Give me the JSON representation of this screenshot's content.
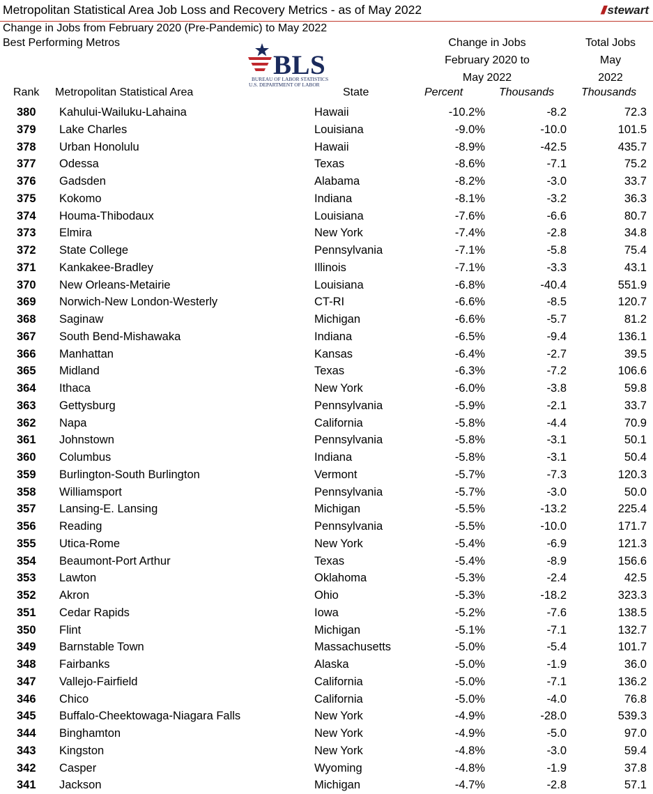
{
  "header": {
    "title": "Metropolitan Statistical Area Job Loss and Recovery Metrics - as of May 2022",
    "brand": "stewart",
    "brand_color": "#b3201f",
    "subtitle1": "Change in Jobs from February 2020 (Pre-Pandemic) to May 2022",
    "subtitle2": "Best Performing Metros"
  },
  "logo": {
    "abbr": "BLS",
    "line1": "BUREAU OF LABOR STATISTICS",
    "line2": "U.S. DEPARTMENT OF LABOR",
    "icon": "bls-star-flag-icon"
  },
  "group_headers": {
    "change_line1": "Change in Jobs",
    "change_line2": "February 2020 to",
    "change_line3": "May 2022",
    "total_line1": "Total Jobs",
    "total_line2": "May",
    "total_line3": "2022"
  },
  "columns": {
    "rank": "Rank",
    "msa": "Metropolitan Statistical Area",
    "state": "State",
    "percent": "Percent",
    "thousands": "Thousands",
    "total_thousands": "Thousands"
  },
  "rows": [
    {
      "rank": "380",
      "msa": "Kahului-Wailuku-Lahaina",
      "state": "Hawaii",
      "pct": "-10.2%",
      "thou": "-8.2",
      "total": "72.3"
    },
    {
      "rank": "379",
      "msa": "Lake Charles",
      "state": "Louisiana",
      "pct": "-9.0%",
      "thou": "-10.0",
      "total": "101.5"
    },
    {
      "rank": "378",
      "msa": "Urban Honolulu",
      "state": "Hawaii",
      "pct": "-8.9%",
      "thou": "-42.5",
      "total": "435.7"
    },
    {
      "rank": "377",
      "msa": "Odessa",
      "state": "Texas",
      "pct": "-8.6%",
      "thou": "-7.1",
      "total": "75.2"
    },
    {
      "rank": "376",
      "msa": "Gadsden",
      "state": "Alabama",
      "pct": "-8.2%",
      "thou": "-3.0",
      "total": "33.7"
    },
    {
      "rank": "375",
      "msa": "Kokomo",
      "state": "Indiana",
      "pct": "-8.1%",
      "thou": "-3.2",
      "total": "36.3"
    },
    {
      "rank": "374",
      "msa": "Houma-Thibodaux",
      "state": "Louisiana",
      "pct": "-7.6%",
      "thou": "-6.6",
      "total": "80.7"
    },
    {
      "rank": "373",
      "msa": "Elmira",
      "state": "New York",
      "pct": "-7.4%",
      "thou": "-2.8",
      "total": "34.8"
    },
    {
      "rank": "372",
      "msa": "State College",
      "state": "Pennsylvania",
      "pct": "-7.1%",
      "thou": "-5.8",
      "total": "75.4"
    },
    {
      "rank": "371",
      "msa": "Kankakee-Bradley",
      "state": "Illinois",
      "pct": "-7.1%",
      "thou": "-3.3",
      "total": "43.1"
    },
    {
      "rank": "370",
      "msa": "New Orleans-Metairie",
      "state": "Louisiana",
      "pct": "-6.8%",
      "thou": "-40.4",
      "total": "551.9"
    },
    {
      "rank": "369",
      "msa": "Norwich-New London-Westerly",
      "state": "CT-RI",
      "pct": "-6.6%",
      "thou": "-8.5",
      "total": "120.7"
    },
    {
      "rank": "368",
      "msa": "Saginaw",
      "state": "Michigan",
      "pct": "-6.6%",
      "thou": "-5.7",
      "total": "81.2"
    },
    {
      "rank": "367",
      "msa": "South Bend-Mishawaka",
      "state": "Indiana",
      "pct": "-6.5%",
      "thou": "-9.4",
      "total": "136.1"
    },
    {
      "rank": "366",
      "msa": "Manhattan",
      "state": "Kansas",
      "pct": "-6.4%",
      "thou": "-2.7",
      "total": "39.5"
    },
    {
      "rank": "365",
      "msa": "Midland",
      "state": "Texas",
      "pct": "-6.3%",
      "thou": "-7.2",
      "total": "106.6"
    },
    {
      "rank": "364",
      "msa": "Ithaca",
      "state": "New York",
      "pct": "-6.0%",
      "thou": "-3.8",
      "total": "59.8"
    },
    {
      "rank": "363",
      "msa": "Gettysburg",
      "state": "Pennsylvania",
      "pct": "-5.9%",
      "thou": "-2.1",
      "total": "33.7"
    },
    {
      "rank": "362",
      "msa": "Napa",
      "state": "California",
      "pct": "-5.8%",
      "thou": "-4.4",
      "total": "70.9"
    },
    {
      "rank": "361",
      "msa": "Johnstown",
      "state": "Pennsylvania",
      "pct": "-5.8%",
      "thou": "-3.1",
      "total": "50.1"
    },
    {
      "rank": "360",
      "msa": "Columbus",
      "state": "Indiana",
      "pct": "-5.8%",
      "thou": "-3.1",
      "total": "50.4"
    },
    {
      "rank": "359",
      "msa": "Burlington-South Burlington",
      "state": "Vermont",
      "pct": "-5.7%",
      "thou": "-7.3",
      "total": "120.3"
    },
    {
      "rank": "358",
      "msa": "Williamsport",
      "state": "Pennsylvania",
      "pct": "-5.7%",
      "thou": "-3.0",
      "total": "50.0"
    },
    {
      "rank": "357",
      "msa": "Lansing-E. Lansing",
      "state": "Michigan",
      "pct": "-5.5%",
      "thou": "-13.2",
      "total": "225.4"
    },
    {
      "rank": "356",
      "msa": "Reading",
      "state": "Pennsylvania",
      "pct": "-5.5%",
      "thou": "-10.0",
      "total": "171.7"
    },
    {
      "rank": "355",
      "msa": "Utica-Rome",
      "state": "New York",
      "pct": "-5.4%",
      "thou": "-6.9",
      "total": "121.3"
    },
    {
      "rank": "354",
      "msa": "Beaumont-Port Arthur",
      "state": "Texas",
      "pct": "-5.4%",
      "thou": "-8.9",
      "total": "156.6"
    },
    {
      "rank": "353",
      "msa": "Lawton",
      "state": "Oklahoma",
      "pct": "-5.3%",
      "thou": "-2.4",
      "total": "42.5"
    },
    {
      "rank": "352",
      "msa": "Akron",
      "state": "Ohio",
      "pct": "-5.3%",
      "thou": "-18.2",
      "total": "323.3"
    },
    {
      "rank": "351",
      "msa": "Cedar Rapids",
      "state": "Iowa",
      "pct": "-5.2%",
      "thou": "-7.6",
      "total": "138.5"
    },
    {
      "rank": "350",
      "msa": "Flint",
      "state": "Michigan",
      "pct": "-5.1%",
      "thou": "-7.1",
      "total": "132.7"
    },
    {
      "rank": "349",
      "msa": "Barnstable Town",
      "state": "Massachusetts",
      "pct": "-5.0%",
      "thou": "-5.4",
      "total": "101.7"
    },
    {
      "rank": "348",
      "msa": "Fairbanks",
      "state": "Alaska",
      "pct": "-5.0%",
      "thou": "-1.9",
      "total": "36.0"
    },
    {
      "rank": "347",
      "msa": "Vallejo-Fairfield",
      "state": "California",
      "pct": "-5.0%",
      "thou": "-7.1",
      "total": "136.2"
    },
    {
      "rank": "346",
      "msa": "Chico",
      "state": "California",
      "pct": "-5.0%",
      "thou": "-4.0",
      "total": "76.8"
    },
    {
      "rank": "345",
      "msa": "Buffalo-Cheektowaga-Niagara Falls",
      "state": "New York",
      "pct": "-4.9%",
      "thou": "-28.0",
      "total": "539.3"
    },
    {
      "rank": "344",
      "msa": "Binghamton",
      "state": "New York",
      "pct": "-4.9%",
      "thou": "-5.0",
      "total": "97.0"
    },
    {
      "rank": "343",
      "msa": "Kingston",
      "state": "New York",
      "pct": "-4.8%",
      "thou": "-3.0",
      "total": "59.4"
    },
    {
      "rank": "342",
      "msa": "Casper",
      "state": "Wyoming",
      "pct": "-4.8%",
      "thou": "-1.9",
      "total": "37.8"
    },
    {
      "rank": "341",
      "msa": "Jackson",
      "state": "Michigan",
      "pct": "-4.7%",
      "thou": "-2.8",
      "total": "57.1"
    }
  ]
}
